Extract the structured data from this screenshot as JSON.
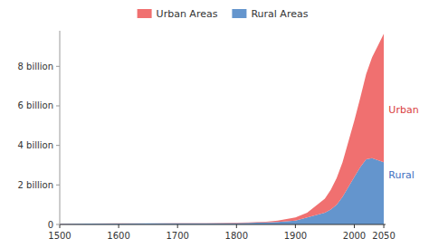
{
  "chart_data": {
    "type": "area",
    "stacked": true,
    "x": [
      1500,
      1550,
      1600,
      1650,
      1700,
      1750,
      1800,
      1820,
      1850,
      1870,
      1900,
      1920,
      1950,
      1960,
      1970,
      1980,
      1990,
      2000,
      2010,
      2020,
      2030,
      2040,
      2050
    ],
    "series": [
      {
        "name": "Rural Areas",
        "color": "#6495CD",
        "values": [
          0.04,
          0.044,
          0.048,
          0.052,
          0.056,
          0.062,
          0.072,
          0.085,
          0.1,
          0.13,
          0.2,
          0.35,
          0.6,
          0.75,
          1.0,
          1.4,
          1.9,
          2.4,
          2.9,
          3.3,
          3.35,
          3.25,
          3.15
        ]
      },
      {
        "name": "Urban Areas",
        "color": "#F07070",
        "values": [
          0.006,
          0.006,
          0.007,
          0.007,
          0.008,
          0.01,
          0.015,
          0.02,
          0.04,
          0.07,
          0.15,
          0.25,
          0.7,
          1.0,
          1.35,
          1.75,
          2.3,
          2.85,
          3.5,
          4.3,
          5.1,
          5.8,
          6.5
        ]
      }
    ],
    "xlim": [
      1500,
      2053
    ],
    "xticks": [
      1500,
      1600,
      1700,
      1800,
      1900,
      2000,
      2050
    ],
    "ylim": [
      0,
      9.8
    ],
    "yticks": [
      0,
      {
        "value": 2,
        "label": "2 billion"
      },
      {
        "value": 4,
        "label": "4 billion"
      },
      {
        "value": 6,
        "label": "6 billion"
      },
      {
        "value": 8,
        "label": "8 billion"
      }
    ],
    "grid": false,
    "legend": "top",
    "annotations": [
      {
        "text": "Urban",
        "x": 2052,
        "y": 5.8,
        "color": "#D94040"
      },
      {
        "text": "Rural",
        "x": 2052,
        "y": 2.5,
        "color": "#4070C0"
      }
    ]
  }
}
